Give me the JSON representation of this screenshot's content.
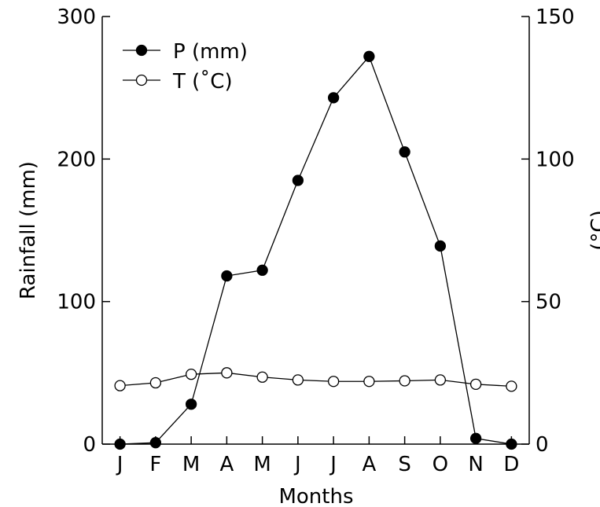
{
  "chart_data": {
    "type": "line",
    "categories": [
      "J",
      "F",
      "M",
      "A",
      "M",
      "J",
      "J",
      "A",
      "S",
      "O",
      "N",
      "D"
    ],
    "xlabel": "Months",
    "ylabel": "Rainfall (mm)",
    "ylabel_right": "(°C)",
    "ylim": [
      0,
      300
    ],
    "y_ticks": [
      "0",
      "100",
      "200",
      "300"
    ],
    "ylim_right": [
      0,
      150
    ],
    "y_ticks_right": [
      "0",
      "50",
      "100",
      "150"
    ],
    "legend_position": "top-left",
    "series": [
      {
        "name": "P (mm)",
        "axis": "left",
        "marker": "filled-circle",
        "values": [
          0,
          1,
          28,
          118,
          122,
          185,
          243,
          272,
          205,
          139,
          4,
          0
        ]
      },
      {
        "name": "T (˚C)",
        "axis": "right",
        "marker": "open-circle",
        "values": [
          20.5,
          21.5,
          24.5,
          25,
          23.5,
          22.5,
          22,
          22,
          22.2,
          22.5,
          21,
          20.3
        ]
      }
    ]
  }
}
